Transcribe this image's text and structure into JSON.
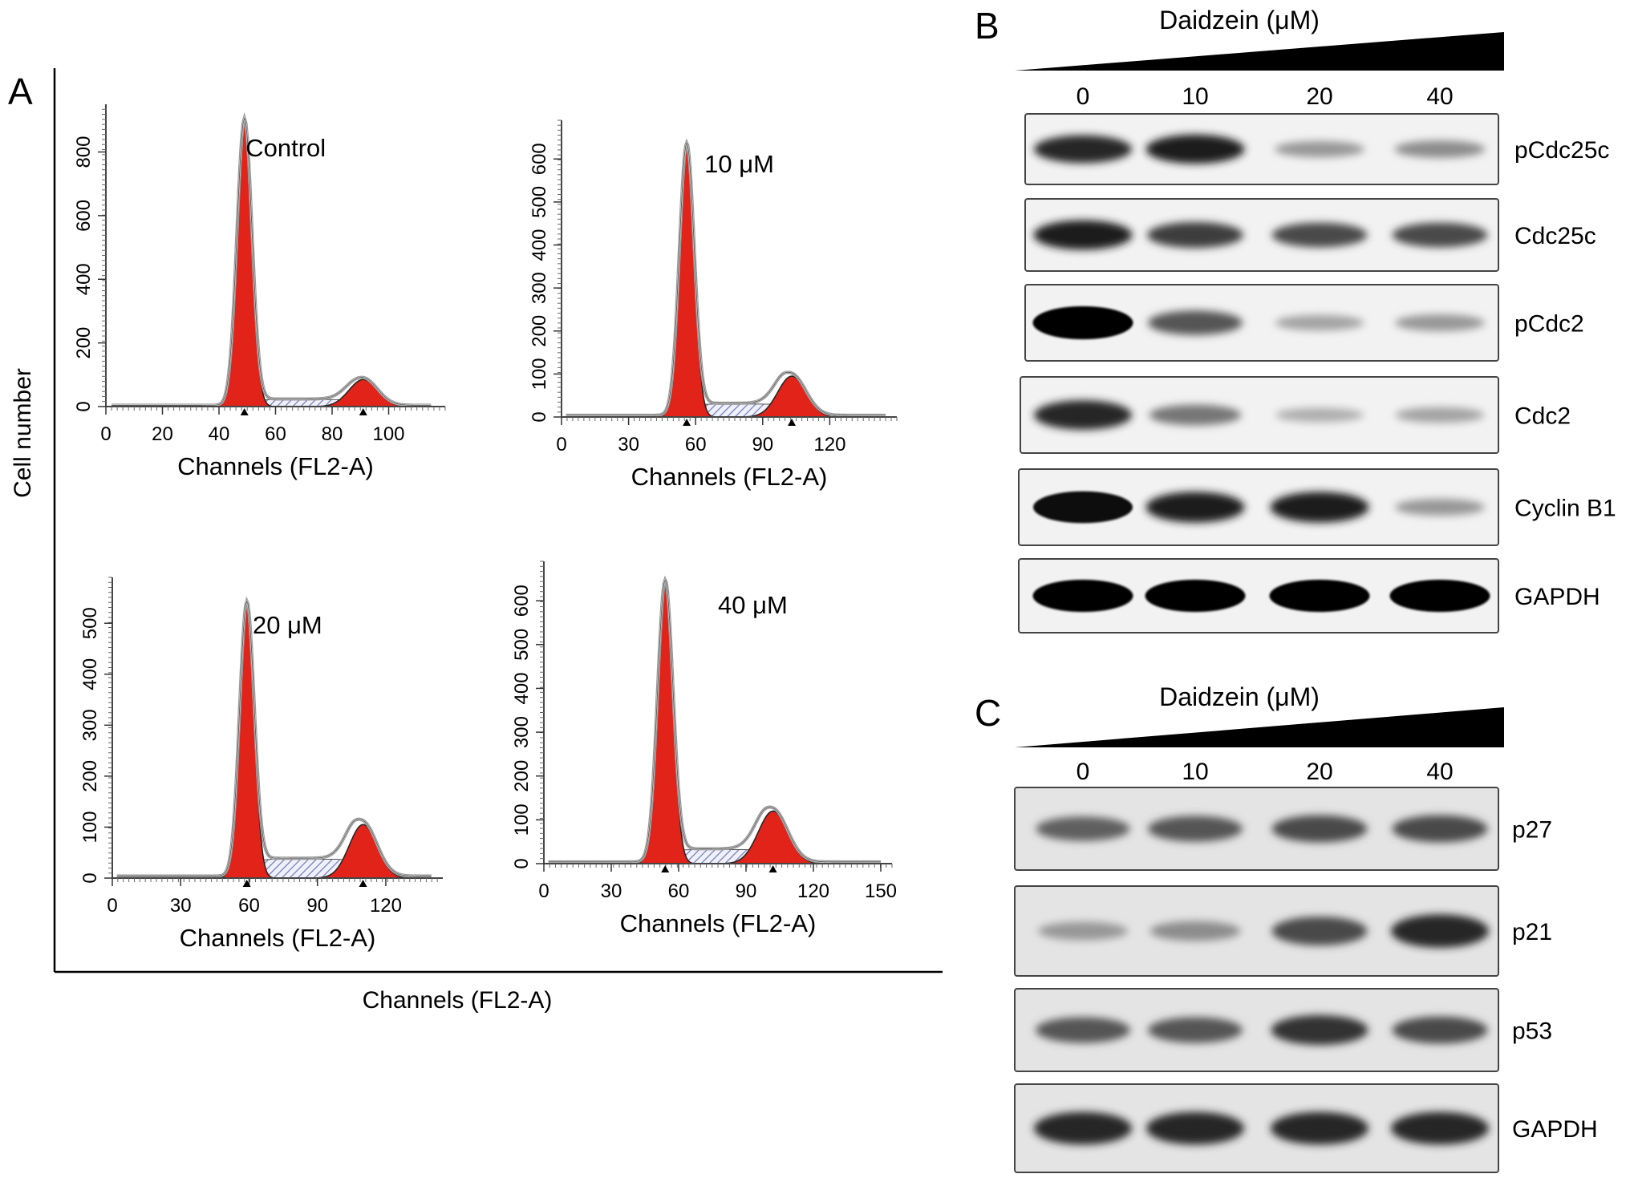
{
  "figure": {
    "panel_labels": [
      "A",
      "B",
      "C"
    ]
  },
  "panel_a": {
    "y_label": "Cell number",
    "x_label": "Channels (FL2-A)",
    "plots": [
      {
        "title": "Control",
        "xlabel": "Channels (FL2-A)",
        "xticks": [
          0,
          20,
          40,
          60,
          80,
          100
        ],
        "xlim": [
          0,
          120
        ],
        "yticks": [
          0,
          200,
          400,
          600,
          800
        ],
        "ylim": [
          0,
          950
        ],
        "g1_peak": {
          "x": 49,
          "height": 900
        },
        "g2_peak": {
          "x": 91,
          "height": 85
        },
        "s_phase_level": 20
      },
      {
        "title": "10 μM",
        "xlabel": "Channels (FL2-A)",
        "xticks": [
          0,
          30,
          60,
          90,
          120
        ],
        "xlim": [
          0,
          150
        ],
        "yticks": [
          0,
          100,
          200,
          300,
          400,
          500,
          600
        ],
        "ylim": [
          0,
          690
        ],
        "g1_peak": {
          "x": 56,
          "height": 630
        },
        "g2_peak": {
          "x": 103,
          "height": 95
        },
        "s_phase_level": 28
      },
      {
        "title": "20 μM",
        "xlabel": "Channels (FL2-A)",
        "xticks": [
          0,
          30,
          60,
          90,
          120
        ],
        "xlim": [
          0,
          145
        ],
        "yticks": [
          0,
          100,
          200,
          300,
          400,
          500
        ],
        "ylim": [
          0,
          590
        ],
        "g1_peak": {
          "x": 59,
          "height": 535
        },
        "g2_peak": {
          "x": 110,
          "height": 105
        },
        "s_phase_level": 35
      },
      {
        "title": "40 μM",
        "xlabel": "Channels (FL2-A)",
        "xticks": [
          0,
          30,
          60,
          90,
          120,
          150
        ],
        "xlim": [
          0,
          155
        ],
        "yticks": [
          0,
          100,
          200,
          300,
          400,
          500,
          600
        ],
        "ylim": [
          0,
          690
        ],
        "g1_peak": {
          "x": 54,
          "height": 640
        },
        "g2_peak": {
          "x": 102,
          "height": 120
        },
        "s_phase_level": 30
      }
    ]
  },
  "panel_b": {
    "title": "Daidzein (μM)",
    "concentrations": [
      "0",
      "10",
      "20",
      "40"
    ],
    "proteins": [
      {
        "name": "pCdc25c",
        "bands": [
          0.85,
          0.9,
          0.35,
          0.4
        ]
      },
      {
        "name": "Cdc25c",
        "bands": [
          0.9,
          0.75,
          0.7,
          0.7
        ]
      },
      {
        "name": "pCdc2",
        "bands": [
          1.0,
          0.65,
          0.3,
          0.35
        ]
      },
      {
        "name": "Cdc2",
        "bands": [
          0.85,
          0.5,
          0.25,
          0.3
        ]
      },
      {
        "name": "Cyclin B1",
        "bands": [
          0.95,
          0.9,
          0.9,
          0.35
        ]
      },
      {
        "name": "GAPDH",
        "bands": [
          1.0,
          1.0,
          1.0,
          1.0
        ]
      }
    ]
  },
  "panel_c": {
    "title": "Daidzein (μM)",
    "concentrations": [
      "0",
      "10",
      "20",
      "40"
    ],
    "proteins": [
      {
        "name": "p27",
        "bands": [
          0.6,
          0.65,
          0.7,
          0.7
        ]
      },
      {
        "name": "p21",
        "bands": [
          0.35,
          0.4,
          0.7,
          0.85
        ]
      },
      {
        "name": "p53",
        "bands": [
          0.65,
          0.65,
          0.8,
          0.7
        ]
      },
      {
        "name": "GAPDH",
        "bands": [
          0.85,
          0.85,
          0.85,
          0.85
        ]
      }
    ]
  },
  "chart_data": [
    {
      "type": "area",
      "title": "Control",
      "xlabel": "Channels (FL2-A)",
      "ylabel": "Cell number",
      "xlim": [
        0,
        120
      ],
      "ylim": [
        0,
        950
      ],
      "series": [
        {
          "values": [
            {
              "x": 49,
              "y": 900
            },
            {
              "x": 70,
              "y": 20
            },
            {
              "x": 91,
              "y": 85
            }
          ]
        }
      ]
    },
    {
      "type": "area",
      "title": "10 μM",
      "xlabel": "Channels (FL2-A)",
      "ylabel": "Cell number",
      "xlim": [
        0,
        150
      ],
      "ylim": [
        0,
        690
      ],
      "series": [
        {
          "values": [
            {
              "x": 56,
              "y": 630
            },
            {
              "x": 80,
              "y": 28
            },
            {
              "x": 103,
              "y": 95
            }
          ]
        }
      ]
    },
    {
      "type": "area",
      "title": "20 μM",
      "xlabel": "Channels (FL2-A)",
      "ylabel": "Cell number",
      "xlim": [
        0,
        145
      ],
      "ylim": [
        0,
        590
      ],
      "series": [
        {
          "values": [
            {
              "x": 59,
              "y": 535
            },
            {
              "x": 85,
              "y": 35
            },
            {
              "x": 110,
              "y": 105
            }
          ]
        }
      ]
    },
    {
      "type": "area",
      "title": "40 μM",
      "xlabel": "Channels (FL2-A)",
      "ylabel": "Cell number",
      "xlim": [
        0,
        155
      ],
      "ylim": [
        0,
        690
      ],
      "series": [
        {
          "values": [
            {
              "x": 54,
              "y": 640
            },
            {
              "x": 78,
              "y": 30
            },
            {
              "x": 102,
              "y": 120
            }
          ]
        }
      ]
    }
  ]
}
